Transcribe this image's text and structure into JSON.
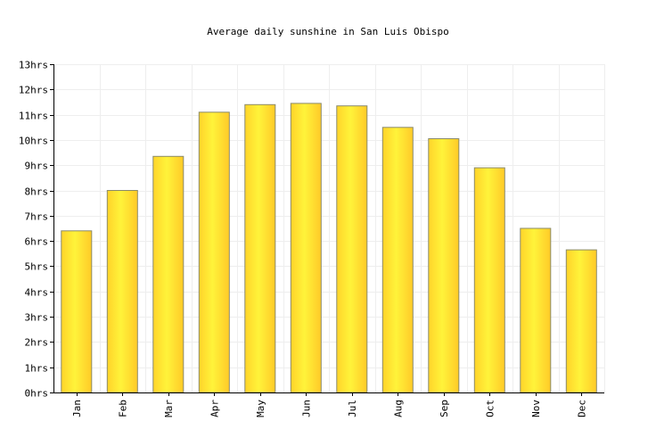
{
  "chart_data": {
    "type": "bar",
    "title": "Average daily sunshine in San Luis Obispo",
    "xlabel": "",
    "ylabel": "",
    "categories": [
      "Jan",
      "Feb",
      "Mar",
      "Apr",
      "May",
      "Jun",
      "Jul",
      "Aug",
      "Sep",
      "Oct",
      "Nov",
      "Dec"
    ],
    "values": [
      6.4,
      8.0,
      9.35,
      11.1,
      11.4,
      11.45,
      11.35,
      10.5,
      10.05,
      8.9,
      6.5,
      5.65
    ],
    "ylim": [
      0,
      13
    ],
    "yticks": [
      "0hrs",
      "1hrs",
      "2hrs",
      "3hrs",
      "4hrs",
      "5hrs",
      "6hrs",
      "7hrs",
      "8hrs",
      "9hrs",
      "10hrs",
      "11hrs",
      "12hrs",
      "13hrs"
    ],
    "grid": true,
    "legend": "none",
    "colors": {
      "bar_light": "#ffef3c",
      "bar_dark": "#ffd42a",
      "bar_stroke": "#8a8a6a",
      "grid": "#eeeeee",
      "axis": "#000000"
    }
  }
}
